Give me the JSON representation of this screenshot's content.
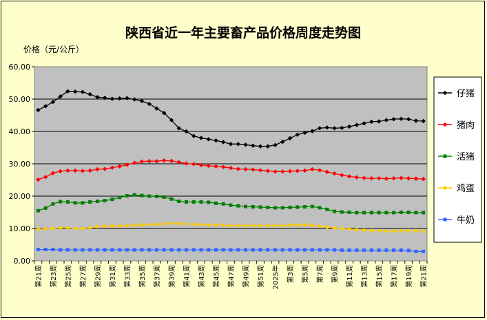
{
  "chart_data": {
    "type": "line",
    "title": "陕西省近一年主要畜产品价格周度走势图",
    "ylabel": "价格（元/公斤）",
    "ylim": [
      0,
      60
    ],
    "y_ticks": [
      "0.00",
      "10.00",
      "20.00",
      "30.00",
      "40.00",
      "50.00",
      "60.00"
    ],
    "grid": true,
    "legend_position": "right",
    "x_tick_labels": [
      "第21周",
      "第23周",
      "第25周",
      "第27周",
      "第29周",
      "第31周",
      "第33周",
      "第35周",
      "第37周",
      "第39周",
      "第41周",
      "第43周",
      "第45周",
      "第47周",
      "第49周",
      "第51周",
      "2025年",
      "第3周",
      "第5周",
      "第7周",
      "第9周",
      "第11周",
      "第13周",
      "第15周",
      "第17周",
      "第19周",
      "第21周"
    ],
    "series": [
      {
        "name": "仔猪",
        "color": "#000000",
        "marker": "diamond",
        "values": [
          46.6,
          47.8,
          49.1,
          50.8,
          52.4,
          52.3,
          52.2,
          51.5,
          50.6,
          50.4,
          50.1,
          50.2,
          50.3,
          49.9,
          49.4,
          48.5,
          47.1,
          45.7,
          43.5,
          41.0,
          40.0,
          38.6,
          38.0,
          37.6,
          37.2,
          36.7,
          36.1,
          36.1,
          35.9,
          35.6,
          35.4,
          35.4,
          35.8,
          36.8,
          37.9,
          39.0,
          39.6,
          40.1,
          41.0,
          41.2,
          41.0,
          41.1,
          41.5,
          42.0,
          42.5,
          43.0,
          43.1,
          43.5,
          43.8,
          43.9,
          43.8,
          43.3,
          43.2
        ]
      },
      {
        "name": "猪肉",
        "color": "#ff0000",
        "marker": "diamond",
        "values": [
          25.1,
          25.9,
          27.1,
          27.7,
          27.9,
          27.9,
          27.8,
          27.9,
          28.3,
          28.4,
          28.8,
          29.2,
          29.7,
          30.3,
          30.7,
          30.8,
          30.8,
          31.0,
          30.9,
          30.5,
          30.1,
          29.9,
          29.6,
          29.4,
          29.2,
          29.0,
          28.7,
          28.4,
          28.3,
          28.2,
          28.0,
          27.8,
          27.6,
          27.6,
          27.7,
          27.8,
          27.9,
          28.3,
          28.0,
          27.5,
          27.0,
          26.5,
          26.1,
          25.8,
          25.6,
          25.5,
          25.5,
          25.4,
          25.5,
          25.6,
          25.5,
          25.4,
          25.3
        ]
      },
      {
        "name": "活猪",
        "color": "#008000",
        "marker": "square",
        "values": [
          15.5,
          16.3,
          17.6,
          18.3,
          18.2,
          17.9,
          17.9,
          18.2,
          18.4,
          18.6,
          19.0,
          19.6,
          20.1,
          20.4,
          20.2,
          20.0,
          19.9,
          19.7,
          19.1,
          18.4,
          18.2,
          18.2,
          18.2,
          18.1,
          17.8,
          17.6,
          17.2,
          17.0,
          16.8,
          16.7,
          16.6,
          16.5,
          16.4,
          16.4,
          16.5,
          16.6,
          16.7,
          16.8,
          16.4,
          15.9,
          15.3,
          15.1,
          15.0,
          14.9,
          14.9,
          14.9,
          14.9,
          14.9,
          14.9,
          15.0,
          15.0,
          14.9,
          14.9
        ]
      },
      {
        "name": "鸡蛋",
        "color": "#ffcc00",
        "marker": "diamond",
        "values": [
          9.8,
          9.9,
          10.0,
          10.2,
          10.2,
          10.0,
          10.0,
          10.2,
          10.6,
          10.7,
          10.8,
          10.8,
          10.9,
          11.0,
          11.1,
          11.2,
          11.3,
          11.4,
          11.6,
          11.5,
          11.4,
          11.3,
          11.2,
          11.1,
          11.1,
          11.0,
          10.9,
          10.9,
          10.9,
          10.9,
          10.9,
          10.9,
          10.9,
          10.9,
          11.0,
          11.1,
          11.1,
          11.0,
          10.7,
          10.4,
          10.1,
          10.0,
          9.8,
          9.6,
          9.5,
          9.4,
          9.3,
          9.2,
          9.2,
          9.3,
          9.3,
          9.4,
          9.2
        ]
      },
      {
        "name": "牛奶",
        "color": "#3366ff",
        "marker": "square",
        "values": [
          3.5,
          3.5,
          3.5,
          3.4,
          3.4,
          3.4,
          3.4,
          3.4,
          3.4,
          3.4,
          3.4,
          3.4,
          3.4,
          3.4,
          3.4,
          3.4,
          3.4,
          3.4,
          3.4,
          3.4,
          3.4,
          3.4,
          3.4,
          3.4,
          3.4,
          3.4,
          3.4,
          3.4,
          3.4,
          3.4,
          3.4,
          3.4,
          3.4,
          3.4,
          3.4,
          3.4,
          3.4,
          3.4,
          3.4,
          3.4,
          3.4,
          3.3,
          3.3,
          3.3,
          3.3,
          3.3,
          3.3,
          3.3,
          3.3,
          3.3,
          3.2,
          2.9,
          2.9
        ]
      }
    ]
  }
}
